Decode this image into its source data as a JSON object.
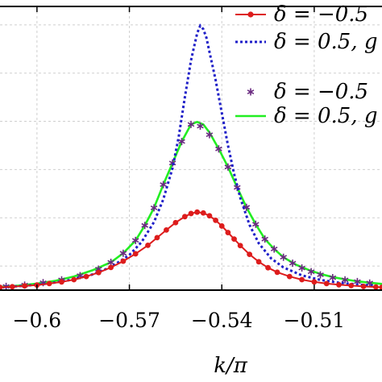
{
  "chart_data": {
    "type": "line",
    "title": "",
    "xlabel": "k/π",
    "ylabel": "",
    "xlim": [
      -0.612,
      -0.488
    ],
    "ylim": [
      0,
      1
    ],
    "grid": true,
    "legend_position": "top-right",
    "x_ticks": [
      -0.6,
      -0.57,
      -0.54,
      -0.51
    ],
    "x_tick_labels": [
      "−0.6",
      "−0.57",
      "−0.54",
      "−0.51"
    ],
    "y_tick_values": [
      0.085,
      0.255,
      0.425,
      0.595,
      0.765,
      0.935
    ],
    "series": [
      {
        "name": "δ = −0.5",
        "color": "#dd1c1c",
        "style": "solid line with circle markers",
        "x": [
          -0.612,
          -0.608,
          -0.604,
          -0.6,
          -0.596,
          -0.592,
          -0.588,
          -0.584,
          -0.58,
          -0.576,
          -0.572,
          -0.568,
          -0.564,
          -0.561,
          -0.558,
          -0.555,
          -0.552,
          -0.55,
          -0.548,
          -0.546,
          -0.544,
          -0.542,
          -0.54,
          -0.538,
          -0.536,
          -0.534,
          -0.531,
          -0.528,
          -0.525,
          -0.522,
          -0.518,
          -0.514,
          -0.51,
          -0.506,
          -0.502,
          -0.498,
          -0.494,
          -0.49,
          -0.488
        ],
        "y": [
          0.01,
          0.012,
          0.015,
          0.018,
          0.023,
          0.029,
          0.037,
          0.048,
          0.062,
          0.08,
          0.102,
          0.128,
          0.158,
          0.185,
          0.212,
          0.238,
          0.259,
          0.27,
          0.275,
          0.272,
          0.262,
          0.246,
          0.226,
          0.203,
          0.18,
          0.157,
          0.126,
          0.1,
          0.079,
          0.063,
          0.048,
          0.037,
          0.029,
          0.023,
          0.019,
          0.016,
          0.013,
          0.011,
          0.01
        ]
      },
      {
        "name": "δ = 0.5, g",
        "color": "#1f1fc8",
        "style": "dotted line",
        "x": [
          -0.612,
          -0.606,
          -0.6,
          -0.594,
          -0.588,
          -0.582,
          -0.576,
          -0.57,
          -0.566,
          -0.562,
          -0.559,
          -0.556,
          -0.554,
          -0.552,
          -0.55,
          -0.548,
          -0.547,
          -0.546,
          -0.545,
          -0.544,
          -0.542,
          -0.54,
          -0.538,
          -0.536,
          -0.534,
          -0.531,
          -0.528,
          -0.524,
          -0.52,
          -0.514,
          -0.508,
          -0.502,
          -0.496,
          -0.49,
          -0.488
        ],
        "y": [
          0.01,
          0.014,
          0.019,
          0.027,
          0.038,
          0.055,
          0.081,
          0.124,
          0.17,
          0.24,
          0.32,
          0.43,
          0.54,
          0.68,
          0.81,
          0.905,
          0.932,
          0.92,
          0.89,
          0.84,
          0.74,
          0.625,
          0.51,
          0.41,
          0.325,
          0.23,
          0.165,
          0.112,
          0.08,
          0.052,
          0.036,
          0.026,
          0.02,
          0.015,
          0.014
        ]
      },
      {
        "name": "δ = −0.5",
        "color": "#6a2a80",
        "style": "star markers",
        "x": [
          -0.61,
          -0.604,
          -0.598,
          -0.592,
          -0.586,
          -0.58,
          -0.576,
          -0.572,
          -0.568,
          -0.565,
          -0.562,
          -0.559,
          -0.556,
          -0.553,
          -0.55,
          -0.547,
          -0.544,
          -0.541,
          -0.538,
          -0.535,
          -0.532,
          -0.529,
          -0.526,
          -0.523,
          -0.52,
          -0.517,
          -0.514,
          -0.511,
          -0.508,
          -0.504,
          -0.5,
          -0.496,
          -0.492
        ],
        "y": [
          0.013,
          0.018,
          0.026,
          0.036,
          0.051,
          0.074,
          0.098,
          0.13,
          0.175,
          0.228,
          0.29,
          0.372,
          0.448,
          0.524,
          0.584,
          0.578,
          0.548,
          0.498,
          0.434,
          0.362,
          0.292,
          0.232,
          0.18,
          0.145,
          0.116,
          0.095,
          0.078,
          0.065,
          0.054,
          0.044,
          0.036,
          0.03,
          0.025
        ]
      },
      {
        "name": "δ = 0.5, g",
        "color": "#22ee22",
        "style": "solid line",
        "x": [
          -0.612,
          -0.606,
          -0.6,
          -0.594,
          -0.588,
          -0.582,
          -0.576,
          -0.572,
          -0.568,
          -0.565,
          -0.562,
          -0.559,
          -0.556,
          -0.553,
          -0.55,
          -0.548,
          -0.546,
          -0.544,
          -0.541,
          -0.538,
          -0.535,
          -0.532,
          -0.529,
          -0.526,
          -0.523,
          -0.52,
          -0.516,
          -0.512,
          -0.508,
          -0.504,
          -0.5,
          -0.496,
          -0.492,
          -0.488
        ],
        "y": [
          0.011,
          0.016,
          0.023,
          0.033,
          0.048,
          0.07,
          0.098,
          0.13,
          0.175,
          0.228,
          0.29,
          0.372,
          0.448,
          0.524,
          0.584,
          0.593,
          0.584,
          0.556,
          0.498,
          0.434,
          0.362,
          0.292,
          0.232,
          0.18,
          0.145,
          0.116,
          0.09,
          0.072,
          0.057,
          0.046,
          0.038,
          0.031,
          0.026,
          0.022
        ]
      }
    ]
  }
}
